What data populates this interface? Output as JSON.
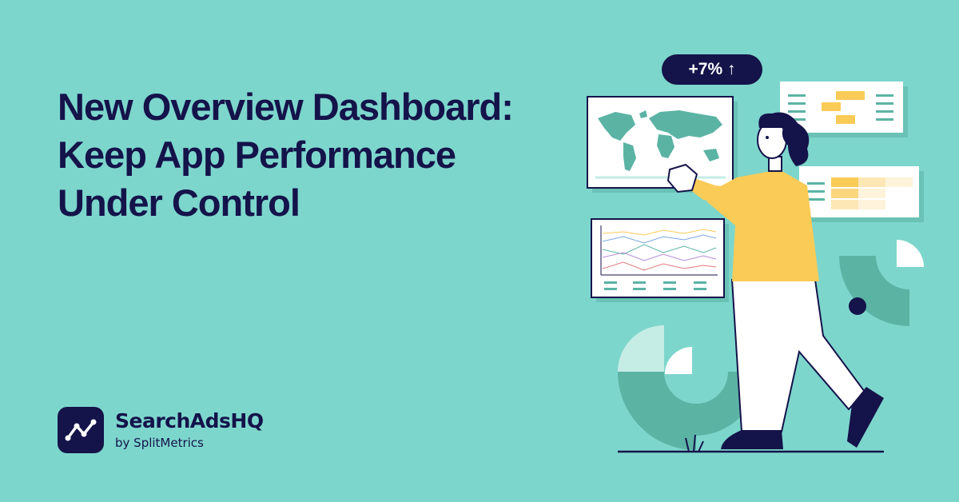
{
  "headline": {
    "line1": "New Overview Dashboard:",
    "line2": "Keep App Performance",
    "line3": "Under Control"
  },
  "badge": {
    "text": "+7% ↑"
  },
  "brand": {
    "name": "SearchAdsHQ",
    "tagline": "by SplitMetrics"
  },
  "icons": [
    "world-map-icon",
    "line-chart-icon",
    "trend-logo-icon"
  ],
  "colors": {
    "background": "#7dd6cc",
    "navy": "#14134a",
    "teal": "#5bb3a4",
    "yellow": "#fbcb57",
    "white": "#ffffff"
  }
}
